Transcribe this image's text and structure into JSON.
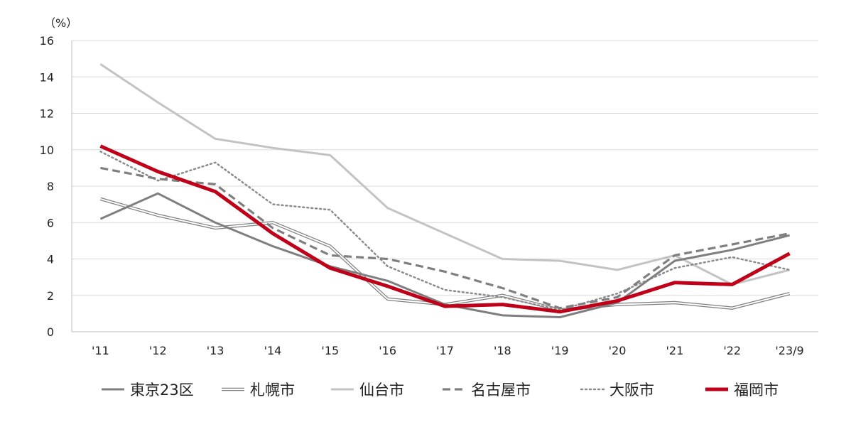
{
  "chart_data": {
    "type": "line",
    "unit_label": "（%）",
    "categories": [
      "'11",
      "'12",
      "'13",
      "'14",
      "'15",
      "'16",
      "'17",
      "'18",
      "'19",
      "'20",
      "'21",
      "'22",
      "'23/9"
    ],
    "yticks": [
      0,
      2,
      4,
      6,
      8,
      10,
      12,
      14,
      16
    ],
    "ylim": [
      0,
      16
    ],
    "grid": true,
    "legend_position": "bottom",
    "series": [
      {
        "name": "東京23区",
        "color": "#7f7f7f",
        "style": "solid",
        "values": [
          6.2,
          7.6,
          6.0,
          4.7,
          3.6,
          2.8,
          1.5,
          0.9,
          0.8,
          1.6,
          3.9,
          4.5,
          5.3
        ]
      },
      {
        "name": "札幌市",
        "color": "#808080",
        "style": "double",
        "values": [
          7.3,
          6.4,
          5.7,
          6.0,
          4.7,
          1.8,
          1.5,
          2.0,
          1.2,
          1.5,
          1.6,
          1.3,
          2.1
        ]
      },
      {
        "name": "仙台市",
        "color": "#c3c3c3",
        "style": "solid",
        "values": [
          14.7,
          12.6,
          10.6,
          10.1,
          9.7,
          6.8,
          5.4,
          4.0,
          3.9,
          3.4,
          4.2,
          2.6,
          3.4
        ]
      },
      {
        "name": "名古屋市",
        "color": "#7f7f7f",
        "style": "dashed",
        "values": [
          9.0,
          8.4,
          8.1,
          5.7,
          4.2,
          4.0,
          3.3,
          2.4,
          1.3,
          1.9,
          4.2,
          4.8,
          5.4
        ]
      },
      {
        "name": "大阪市",
        "color": "#8c8c8c",
        "style": "dotted",
        "values": [
          9.9,
          8.3,
          9.3,
          7.0,
          6.7,
          3.6,
          2.3,
          1.9,
          1.2,
          2.1,
          3.5,
          4.1,
          3.4
        ]
      },
      {
        "name": "福岡市",
        "color": "#c00018",
        "style": "bold",
        "values": [
          10.2,
          8.8,
          7.7,
          5.4,
          3.5,
          2.5,
          1.4,
          1.5,
          1.1,
          1.7,
          2.7,
          2.6,
          4.3
        ]
      }
    ]
  }
}
